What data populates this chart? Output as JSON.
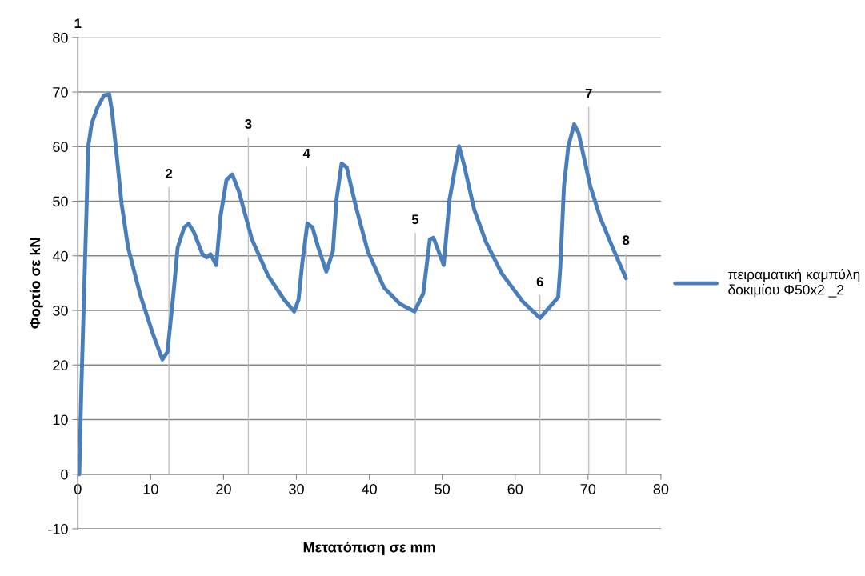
{
  "chart_data": {
    "type": "line",
    "xlabel": "Μετατόπιση σε mm",
    "ylabel": "Φορτίο σε kN",
    "xlim": [
      0,
      80
    ],
    "ylim": [
      -10,
      80
    ],
    "xticks": [
      0,
      10,
      20,
      30,
      40,
      50,
      60,
      70,
      80
    ],
    "yticks": [
      -10,
      0,
      10,
      20,
      30,
      40,
      50,
      60,
      70,
      80
    ],
    "grid": "y",
    "legend": "right",
    "marker": "none",
    "line_style": "solid",
    "series": [
      {
        "name": "πειραματική καμπύλη\nδοκιμίου Φ50x2 _2",
        "color": "#4a7ebb",
        "x": [
          0.2,
          0.5,
          1.2,
          1.4,
          1.9,
          2.7,
          3.6,
          4.3,
          4.7,
          5.4,
          6.0,
          6.9,
          8.6,
          10.2,
          11.6,
          12.3,
          13.1,
          13.7,
          14.6,
          15.2,
          15.9,
          17.1,
          17.7,
          18.2,
          19.0,
          19.6,
          20.4,
          21.2,
          22.1,
          23.9,
          26.1,
          28.3,
          29.7,
          30.3,
          30.8,
          31.5,
          32.2,
          33.0,
          34.1,
          35.0,
          35.5,
          36.2,
          36.9,
          38.2,
          39.8,
          42.0,
          44.2,
          46.2,
          47.4,
          48.3,
          48.8,
          50.2,
          51.0,
          52.3,
          53.0,
          54.4,
          56.0,
          58.2,
          61.0,
          63.4,
          65.9,
          66.2,
          66.7,
          67.3,
          68.1,
          68.7,
          70.3,
          71.7,
          73.5,
          75.2
        ],
        "values": [
          0,
          16.6,
          48.8,
          59.8,
          64.2,
          67.2,
          69.4,
          69.6,
          66.4,
          57.6,
          49.6,
          41.5,
          32.7,
          26.1,
          21.0,
          22.4,
          32.7,
          41.5,
          45.2,
          45.9,
          44.4,
          40.3,
          39.7,
          40.3,
          38.3,
          47.4,
          53.9,
          54.9,
          51.8,
          43.0,
          36.4,
          32.0,
          29.8,
          32.0,
          38.6,
          45.9,
          45.2,
          41.5,
          37.1,
          40.8,
          50.3,
          56.9,
          56.2,
          48.8,
          40.8,
          34.2,
          31.2,
          29.8,
          33.1,
          43.0,
          43.3,
          38.3,
          50.3,
          60.1,
          56.6,
          48.4,
          42.5,
          36.7,
          31.7,
          28.6,
          32.4,
          38.1,
          52.8,
          60.1,
          64.1,
          62.5,
          52.8,
          46.9,
          41.1,
          35.9
        ]
      }
    ],
    "ref_lines": [
      {
        "axis": "x",
        "value": 12.5,
        "color": "#c0c0c0"
      },
      {
        "axis": "x",
        "value": 23.4,
        "color": "#c0c0c0"
      },
      {
        "axis": "x",
        "value": 31.4,
        "color": "#c0c0c0"
      },
      {
        "axis": "x",
        "value": 46.3,
        "color": "#c0c0c0"
      },
      {
        "axis": "x",
        "value": 63.4,
        "color": "#c0c0c0"
      },
      {
        "axis": "x",
        "value": 70.1,
        "color": "#c0c0c0"
      },
      {
        "axis": "x",
        "value": 75.2,
        "color": "#c0c0c0"
      }
    ],
    "annotations": [
      "1",
      {
        "text": "2",
        "x": 12.5,
        "y": 52.5
      },
      {
        "text": "3",
        "x": 23.4,
        "y": 61.6
      },
      {
        "text": "4",
        "x": 31.4,
        "y": 56.2
      },
      {
        "text": "5",
        "x": 46.3,
        "y": 44.1
      },
      {
        "text": "6",
        "x": 63.4,
        "y": 32.7
      },
      {
        "text": "7",
        "x": 70.1,
        "y": 67.2
      },
      {
        "text": "8",
        "x": 75.2,
        "y": 40.3
      }
    ]
  }
}
